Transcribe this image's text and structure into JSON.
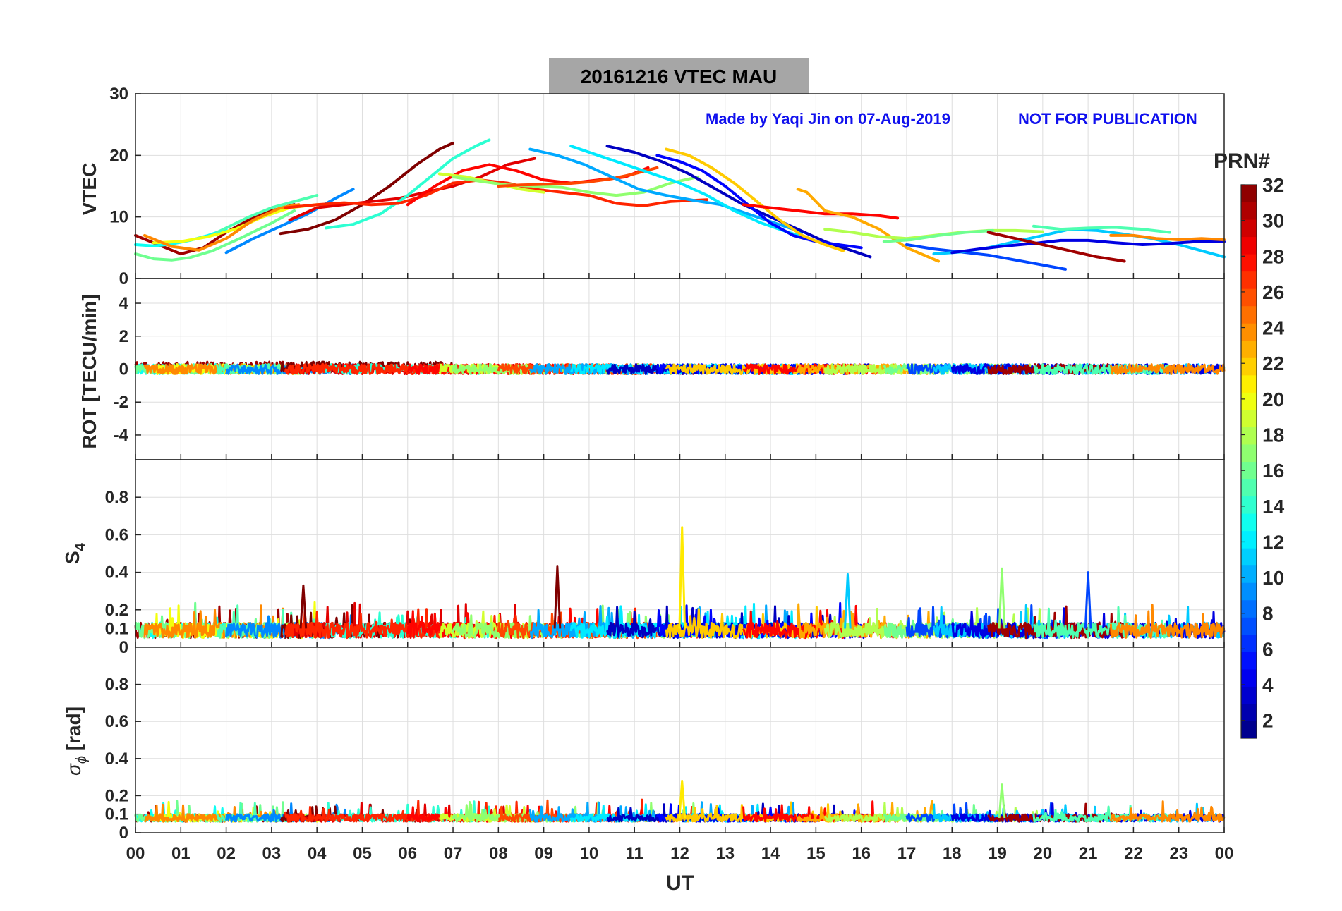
{
  "title": "20161216    VTEC  MAU",
  "note_left": "Made by Yaqi Jin on 07-Aug-2019",
  "note_right": "NOT FOR PUBLICATION",
  "colors": {
    "note": "#1010ee",
    "title_box": "#a6a6a6",
    "grid": "#dedede",
    "axis": "#262626"
  },
  "chart_data": {
    "type": "line",
    "colormap": "jet",
    "xlabel": "UT",
    "xlim": [
      0,
      24
    ],
    "xticks": [
      "00",
      "01",
      "02",
      "03",
      "04",
      "05",
      "06",
      "07",
      "08",
      "09",
      "10",
      "11",
      "12",
      "13",
      "14",
      "15",
      "16",
      "17",
      "18",
      "19",
      "20",
      "21",
      "22",
      "23",
      "00"
    ],
    "colorbar": {
      "label": "PRN#",
      "range": [
        1,
        32
      ],
      "ticks": [
        "2",
        "4",
        "6",
        "8",
        "10",
        "12",
        "14",
        "16",
        "18",
        "20",
        "22",
        "24",
        "26",
        "28",
        "30",
        "32"
      ]
    },
    "panels": [
      {
        "id": "vtec",
        "ylabel": "VTEC",
        "ylim": [
          0,
          30
        ],
        "yticks": [
          "0",
          "10",
          "20",
          "30"
        ],
        "series": [
          {
            "prn": 31,
            "x": [
              0.0,
              0.5,
              1.0,
              1.5,
              2.0,
              2.5,
              3.0,
              3.5
            ],
            "y": [
              7,
              5.5,
              4,
              5,
              7.5,
              9.5,
              11,
              12
            ]
          },
          {
            "prn": 13,
            "x": [
              0.0,
              0.4,
              0.8,
              1.2,
              1.6,
              2.0
            ],
            "y": [
              5.5,
              5.3,
              5.6,
              6.2,
              7,
              8
            ]
          },
          {
            "prn": 16,
            "x": [
              0.0,
              0.4,
              0.8,
              1.2,
              1.7,
              2.3,
              3.0,
              3.5
            ],
            "y": [
              4,
              3.2,
              3,
              3.4,
              4.5,
              6.5,
              9,
              11
            ]
          },
          {
            "prn": 20,
            "x": [
              0.4,
              1.0,
              1.6,
              2.2,
              2.8,
              3.4,
              4.0,
              4.2
            ],
            "y": [
              5.8,
              6,
              6.8,
              8,
              10,
              11.5,
              12,
              12
            ]
          },
          {
            "prn": 24,
            "x": [
              0.2,
              0.8,
              1.4,
              2.0,
              2.6,
              3.2,
              3.6
            ],
            "y": [
              7,
              5.2,
              4.6,
              6.5,
              9.5,
              11.5,
              12
            ]
          },
          {
            "prn": 15,
            "x": [
              1.8,
              2.5,
              3.0,
              3.5,
              4.0
            ],
            "y": [
              7.5,
              10,
              11.5,
              12.5,
              13.5
            ]
          },
          {
            "prn": 9,
            "x": [
              2.0,
              2.6,
              3.2,
              3.8,
              4.4,
              4.8
            ],
            "y": [
              4.2,
              6.5,
              8.5,
              10.5,
              13,
              14.5
            ]
          },
          {
            "prn": 32,
            "x": [
              3.2,
              3.8,
              4.4,
              5.0,
              5.6,
              6.2,
              6.7,
              7.0
            ],
            "y": [
              7.3,
              8,
              9.5,
              12,
              15,
              18.5,
              21,
              22
            ]
          },
          {
            "prn": 29,
            "x": [
              3.4,
              4.0,
              4.6,
              5.2,
              5.8,
              6.4,
              7.0,
              7.6,
              8.2,
              8.8
            ],
            "y": [
              9.5,
              11.5,
              12,
              12.5,
              13,
              14,
              15,
              16.5,
              18.5,
              19.5
            ]
          },
          {
            "prn": 14,
            "x": [
              4.2,
              4.8,
              5.4,
              6.0,
              6.5,
              7.0,
              7.5,
              7.8
            ],
            "y": [
              8.2,
              8.8,
              10.5,
              13.5,
              16.5,
              19.5,
              21.5,
              22.5
            ]
          },
          {
            "prn": 27,
            "x": [
              3.3,
              4.0,
              4.6,
              5.2,
              5.8,
              6.4,
              7.0,
              7.6,
              8.2,
              8.8,
              9.4,
              10.0,
              10.6,
              11.2,
              11.8,
              12.6
            ],
            "y": [
              11.5,
              12,
              12.3,
              12,
              12.2,
              13.5,
              15.5,
              16,
              15.5,
              14.5,
              14,
              13.5,
              12.2,
              11.8,
              12.5,
              12.8
            ]
          },
          {
            "prn": 28,
            "x": [
              6.0,
              6.6,
              7.2,
              7.8,
              8.4,
              9.0,
              9.6,
              10.2,
              10.8,
              11.3
            ],
            "y": [
              12,
              15,
              17.5,
              18.5,
              17.5,
              16,
              15.5,
              16,
              16.5,
              18
            ]
          },
          {
            "prn": 19,
            "x": [
              6.7,
              7.3,
              7.9,
              8.5,
              9.0
            ],
            "y": [
              17,
              16.5,
              15.5,
              14.5,
              14
            ]
          },
          {
            "prn": 17,
            "x": [
              7.0,
              7.6,
              8.2,
              8.8,
              9.4,
              10.0,
              10.6,
              11.2,
              11.8,
              12.4
            ],
            "y": [
              16.5,
              15.8,
              15.2,
              15,
              14.8,
              14,
              13.5,
              14,
              15.5,
              16.5
            ]
          },
          {
            "prn": 26,
            "x": [
              8.0,
              8.5,
              9.0,
              9.5,
              10.0,
              10.5,
              11.0,
              11.5
            ],
            "y": [
              15,
              15.2,
              15.3,
              15.4,
              15.7,
              16.2,
              17,
              18
            ]
          },
          {
            "prn": 10,
            "x": [
              8.7,
              9.3,
              9.9,
              10.5,
              11.1,
              11.7,
              12.3,
              12.9,
              13.5,
              14.1,
              14.7
            ],
            "y": [
              21,
              20,
              18.5,
              16.5,
              14.5,
              13.5,
              12.7,
              12,
              10.5,
              9,
              7.5
            ]
          },
          {
            "prn": 12,
            "x": [
              9.6,
              10.2,
              10.8,
              11.4,
              12.0,
              12.6,
              13.2,
              13.8,
              14.4,
              15.0
            ],
            "y": [
              21.5,
              20,
              18.5,
              17,
              15.5,
              13.5,
              11,
              9,
              7.5,
              6
            ]
          },
          {
            "prn": 3,
            "x": [
              10.4,
              11.0,
              11.6,
              12.2,
              12.8,
              13.4,
              14.0,
              14.6,
              15.2,
              15.8,
              16.2
            ],
            "y": [
              21.5,
              20.5,
              19,
              17,
              14.5,
              12,
              10,
              8,
              6,
              4.5,
              3.5
            ]
          },
          {
            "prn": 5,
            "x": [
              11.5,
              12.0,
              12.5,
              13.0,
              13.5,
              14.0,
              14.5,
              15.0,
              15.5,
              16.0
            ],
            "y": [
              20,
              19,
              17.5,
              15,
              12,
              9,
              7,
              6,
              5.5,
              5
            ]
          },
          {
            "prn": 22,
            "x": [
              11.7,
              12.2,
              12.7,
              13.2,
              13.7,
              14.2,
              14.7,
              15.2,
              15.6
            ],
            "y": [
              21,
              20,
              18,
              15.5,
              12.5,
              9.5,
              7,
              5.5,
              4.5
            ]
          },
          {
            "prn": 28,
            "x": [
              13.4,
              14.0,
              14.6,
              15.2,
              15.8,
              16.4,
              16.8
            ],
            "y": [
              12,
              11.5,
              11,
              10.5,
              10.5,
              10.2,
              9.8
            ]
          },
          {
            "prn": 23,
            "x": [
              14.6,
              14.8,
              15.2,
              15.8,
              16.4,
              17.0,
              17.7
            ],
            "y": [
              14.5,
              14,
              11,
              10,
              8,
              5,
              2.8
            ]
          },
          {
            "prn": 18,
            "x": [
              15.2,
              15.8,
              16.4,
              17.0,
              17.6,
              18.2,
              18.8,
              19.4,
              20.0
            ],
            "y": [
              8,
              7.5,
              6.8,
              6.5,
              7,
              7.5,
              7.8,
              7.8,
              7.6
            ]
          },
          {
            "prn": 16,
            "x": [
              16.5,
              17.1,
              17.7,
              18.3,
              18.9
            ],
            "y": [
              6,
              6.3,
              7,
              7.5,
              7.8
            ]
          },
          {
            "prn": 7,
            "x": [
              17.0,
              17.6,
              18.2,
              18.8,
              19.4,
              20.0,
              20.5
            ],
            "y": [
              5.5,
              4.8,
              4.3,
              3.8,
              3,
              2.2,
              1.5
            ]
          },
          {
            "prn": 11,
            "x": [
              17.6,
              18.2,
              18.8,
              19.4,
              20.0,
              20.6,
              21.2,
              21.8,
              22.4,
              23.0,
              23.5,
              24.0
            ],
            "y": [
              4,
              4.3,
              5,
              6,
              7,
              8,
              7.8,
              7.2,
              6.5,
              5.5,
              4.5,
              3.5
            ]
          },
          {
            "prn": 4,
            "x": [
              18.0,
              18.6,
              19.2,
              19.8,
              20.4,
              21.0,
              21.6,
              22.2,
              22.8,
              23.4,
              24.0
            ],
            "y": [
              4.2,
              4.8,
              5.3,
              5.7,
              6.2,
              6.2,
              5.8,
              5.5,
              5.7,
              6,
              6
            ]
          },
          {
            "prn": 31,
            "x": [
              18.8,
              19.4,
              20.0,
              20.6,
              21.2,
              21.8
            ],
            "y": [
              7.5,
              6.5,
              5.5,
              4.5,
              3.5,
              2.8
            ]
          },
          {
            "prn": 15,
            "x": [
              19.8,
              20.4,
              21.0,
              21.6,
              22.2,
              22.8
            ],
            "y": [
              8.5,
              8,
              8.2,
              8.3,
              8,
              7.5
            ]
          },
          {
            "prn": 24,
            "x": [
              21.5,
              22.0,
              22.5,
              23.0,
              23.5,
              24.0
            ],
            "y": [
              7,
              7,
              6.5,
              6.3,
              6.5,
              6.3
            ]
          }
        ]
      },
      {
        "id": "rot",
        "ylabel": "ROT [TECU/min]",
        "ylim": [
          -5.5,
          5.5
        ],
        "yticks": [
          "-4",
          "-2",
          "0",
          "2",
          "4"
        ]
      },
      {
        "id": "s4",
        "ylabel": "S4",
        "ylim": [
          0,
          1
        ],
        "yticks": [
          "0",
          "0.1",
          "0.2",
          "0.4",
          "0.6",
          "0.8"
        ],
        "peaks": [
          {
            "prn": 32,
            "x": 3.7,
            "y": 0.33
          },
          {
            "prn": 32,
            "x": 9.3,
            "y": 0.43
          },
          {
            "prn": 21,
            "x": 12.05,
            "y": 0.64
          },
          {
            "prn": 11,
            "x": 15.7,
            "y": 0.39
          },
          {
            "prn": 17,
            "x": 19.1,
            "y": 0.42
          },
          {
            "prn": 7,
            "x": 21.0,
            "y": 0.4
          }
        ]
      },
      {
        "id": "sigma_phi",
        "ylabel": "σϕ [rad]",
        "ylim": [
          0,
          1
        ],
        "yticks": [
          "0",
          "0.1",
          "0.2",
          "0.4",
          "0.6",
          "0.8"
        ],
        "peaks": [
          {
            "prn": 21,
            "x": 12.05,
            "y": 0.28
          },
          {
            "prn": 17,
            "x": 19.1,
            "y": 0.26
          }
        ]
      }
    ]
  }
}
